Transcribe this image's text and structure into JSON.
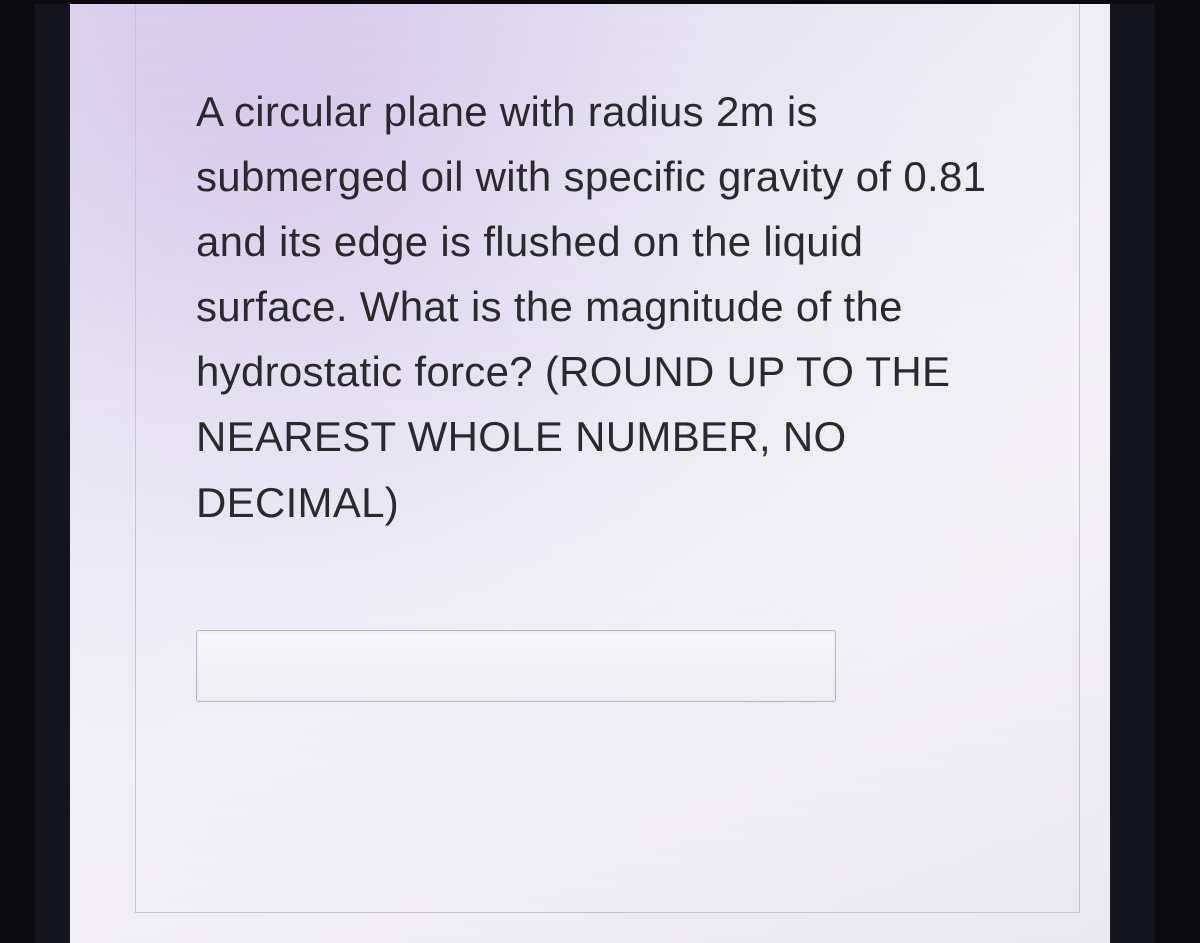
{
  "question": {
    "text": "A circular plane with radius 2m is submerged oil with specific gravity of 0.81 and its edge is flushed on the liquid surface. What is the magnitude of the hydrostatic force? (ROUND UP TO THE NEAREST WHOLE NUMBER, NO DECIMAL)"
  },
  "answer": {
    "value": "",
    "placeholder": ""
  },
  "styling": {
    "question_font_size": 42,
    "question_color": "#2a2a2e",
    "card_border_color": "#c8c5d0",
    "input_border_color": "#b8b5c2",
    "background_gradient_start": "#e8e2f0",
    "background_gradient_end": "#ebe9f0"
  }
}
